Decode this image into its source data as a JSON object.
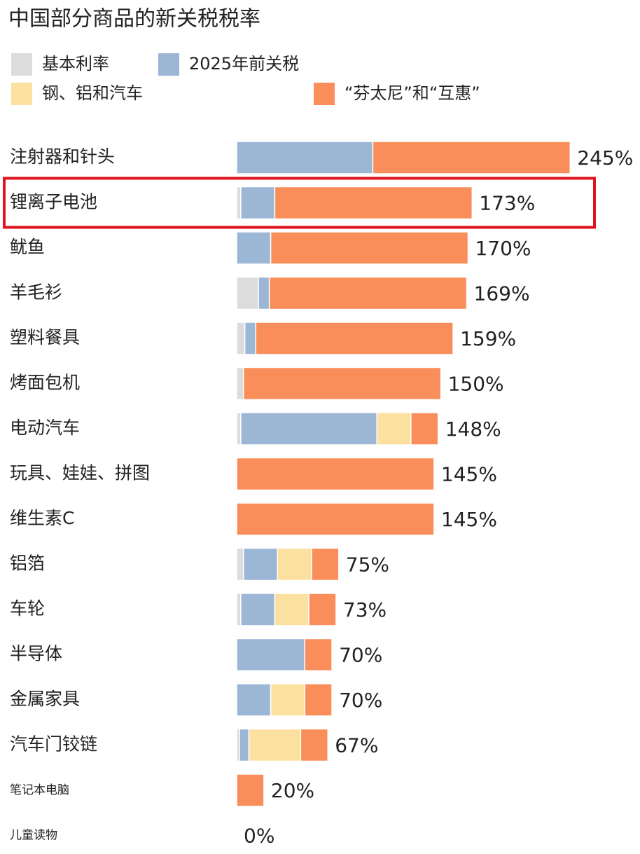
{
  "chart_data": {
    "type": "stacked-barh",
    "title": "中国部分商品的新关税税率",
    "categories": [
      "注射器和针头",
      "锂离子电池",
      "鱿鱼",
      "羊毛衫",
      "塑料餐具",
      "烤面包机",
      "电动汽车",
      "玩具、娃娃、拼图",
      "维生素C",
      "铝箔",
      "车轮",
      "半导体",
      "金属家具",
      "汽车门铰链",
      "笔记本电脑",
      "儿童读物"
    ],
    "series": [
      {
        "name": "基本利率",
        "color": "#dcdcdc",
        "values": [
          0,
          3,
          0,
          16,
          6,
          5,
          3,
          0,
          0,
          5,
          3,
          0,
          0,
          2,
          0,
          0
        ]
      },
      {
        "name": "2025年前关税",
        "color": "#9cb7d6",
        "values": [
          100,
          25,
          25,
          8,
          8,
          0,
          100,
          0,
          0,
          25,
          25,
          50,
          25,
          7,
          0,
          0
        ]
      },
      {
        "name": "钢、铝和汽车",
        "color": "#fbe09f",
        "values": [
          0,
          0,
          0,
          0,
          0,
          0,
          25,
          0,
          0,
          25,
          25,
          0,
          25,
          38,
          0,
          0
        ]
      },
      {
        "name": "“芬太尼”和“互惠”",
        "color": "#f98e5a",
        "values": [
          145,
          145,
          145,
          145,
          145,
          145,
          20,
          145,
          145,
          20,
          20,
          20,
          20,
          20,
          20,
          0
        ]
      }
    ],
    "value_labels": [
      "245%",
      "173%",
      "170%",
      "169%",
      "159%",
      "150%",
      "148%",
      "145%",
      "145%",
      "75%",
      "73%",
      "70%",
      "70%",
      "67%",
      "20%",
      "0%"
    ],
    "xlim": [
      0,
      250
    ]
  }
}
